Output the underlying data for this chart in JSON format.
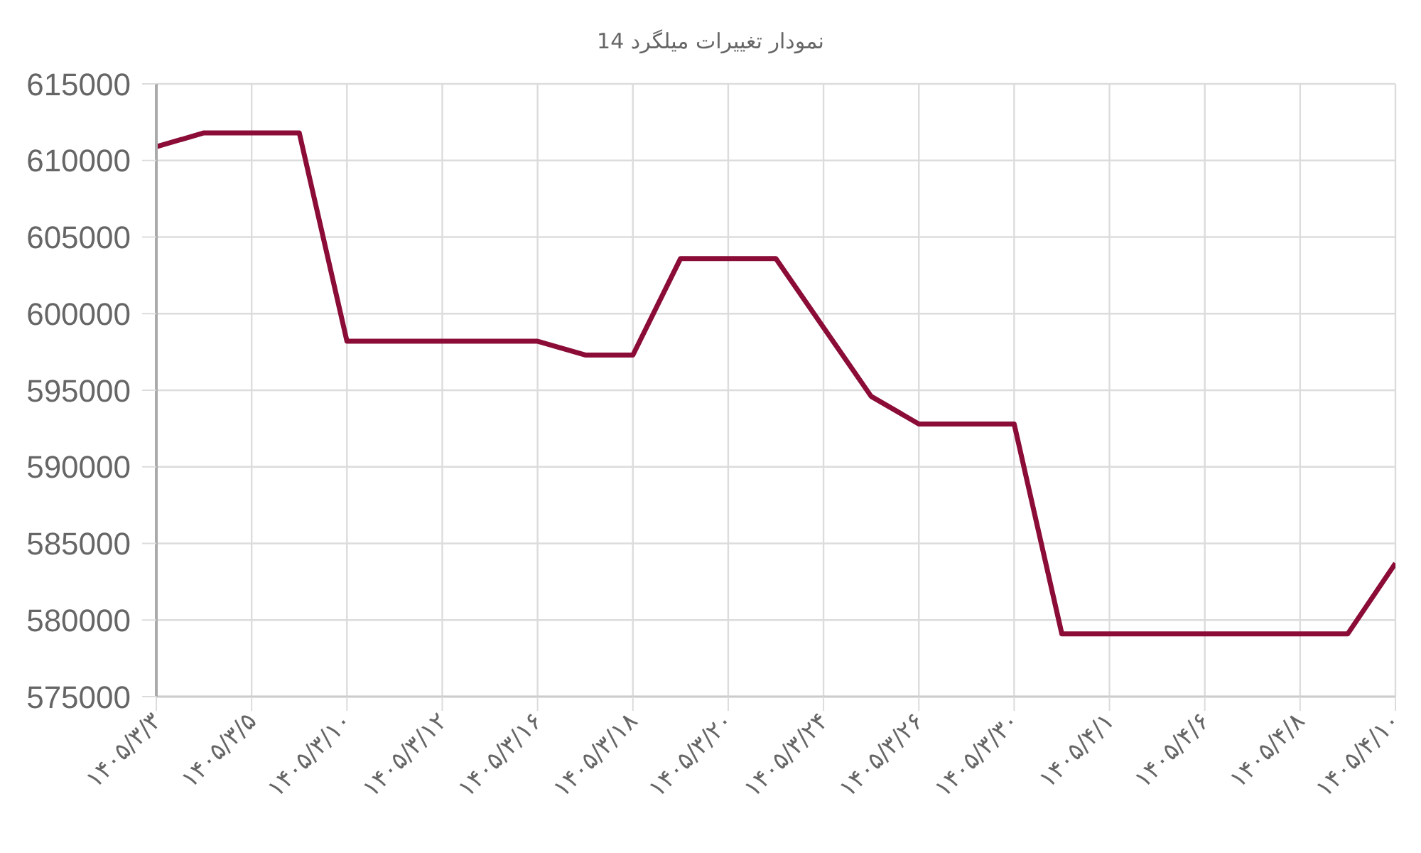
{
  "chart_data": {
    "type": "line",
    "title": "نمودار تغییرات میلگرد 14",
    "categories": [
      "۱۴۰۵/۳/۳",
      null,
      "۱۴۰۵/۳/۵",
      null,
      "۱۴۰۵/۳/۱۰",
      null,
      "۱۴۰۵/۳/۱۲",
      null,
      "۱۴۰۵/۳/۱۶",
      null,
      "۱۴۰۵/۳/۱۸",
      null,
      "۱۴۰۵/۳/۲۰",
      null,
      "۱۴۰۵/۳/۲۴",
      null,
      "۱۴۰۵/۳/۲۶",
      null,
      "۱۴۰۵/۳/۳۰",
      null,
      "۱۴۰۵/۴/۱",
      null,
      "۱۴۰۵/۴/۶",
      null,
      "۱۴۰۵/۴/۸",
      null,
      "۱۴۰۵/۴/۱۰"
    ],
    "series": [
      {
        "color": "#8b0c36",
        "values": [
          610900,
          611800,
          611800,
          611800,
          598200,
          598200,
          598200,
          598200,
          598200,
          597300,
          597300,
          603600,
          603600,
          603600,
          599100,
          594600,
          592800,
          592800,
          592800,
          579100,
          579100,
          579100,
          579100,
          579100,
          579100,
          579100,
          583700
        ]
      }
    ],
    "ylim": [
      575000,
      615000
    ],
    "yticks": [
      575000,
      580000,
      585000,
      590000,
      595000,
      600000,
      605000,
      610000,
      615000
    ],
    "grid": true,
    "marker": "none"
  }
}
